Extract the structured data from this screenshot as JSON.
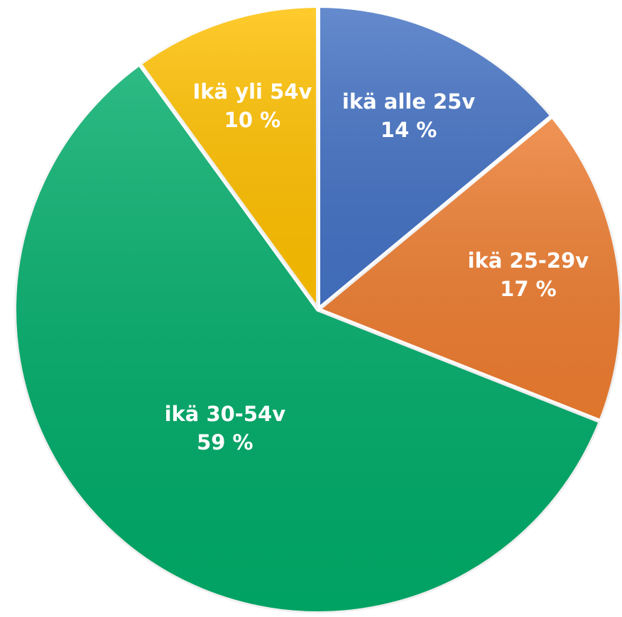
{
  "chart_data": {
    "type": "pie",
    "categories": [
      "ikä alle 25v",
      "ikä 25-29v",
      "ikä 30-54v",
      "Ikä yli 54v"
    ],
    "values": [
      14,
      17,
      59,
      10
    ],
    "value_labels": [
      "14 %",
      "17 %",
      "59 %",
      "10 %"
    ],
    "colors": [
      "#4472c4",
      "#ed7d31",
      "#00ac69",
      "#ffc000"
    ]
  }
}
